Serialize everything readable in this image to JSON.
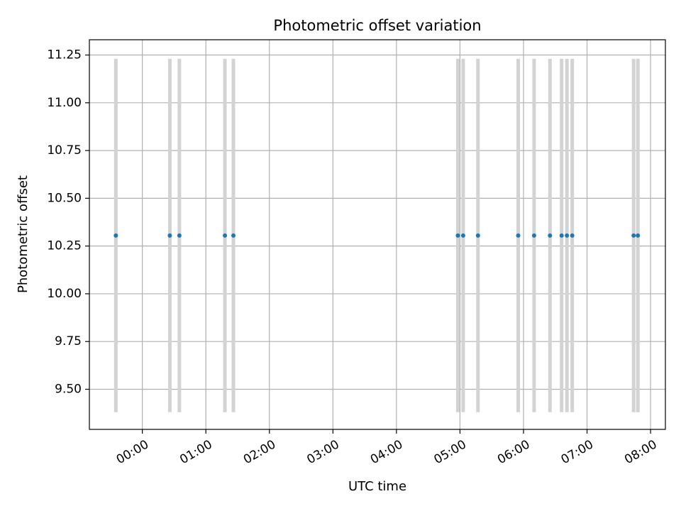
{
  "chart_data": {
    "type": "scatter",
    "title": "Photometric offset variation",
    "xlabel": "UTC time",
    "ylabel": "Photometric offset",
    "x_ticks": [
      "00:00",
      "01:00",
      "02:00",
      "03:00",
      "04:00",
      "05:00",
      "06:00",
      "07:00",
      "08:00"
    ],
    "y_ticks": [
      "9.50",
      "9.75",
      "10.00",
      "10.25",
      "10.50",
      "10.75",
      "11.00",
      "11.25"
    ],
    "xlim": [
      "-00:50",
      "08:14"
    ],
    "ylim": [
      9.29,
      11.33
    ],
    "grid": true,
    "errorbar_color": "#d3d3d3",
    "marker_color": "#1f77b4",
    "x": [
      "-00:25",
      "00:26",
      "00:35",
      "01:18",
      "01:26",
      "04:58",
      "05:03",
      "05:17",
      "05:55",
      "06:10",
      "06:25",
      "06:36",
      "06:41",
      "06:46",
      "07:44",
      "07:48"
    ],
    "y": [
      10.305,
      10.305,
      10.305,
      10.305,
      10.305,
      10.305,
      10.305,
      10.305,
      10.305,
      10.305,
      10.305,
      10.305,
      10.305,
      10.305,
      10.305,
      10.305
    ],
    "y_err_low": [
      9.38,
      9.38,
      9.38,
      9.38,
      9.38,
      9.38,
      9.38,
      9.38,
      9.38,
      9.38,
      9.38,
      9.38,
      9.38,
      9.38,
      9.38,
      9.38
    ],
    "y_err_high": [
      11.23,
      11.23,
      11.23,
      11.23,
      11.23,
      11.23,
      11.23,
      11.23,
      11.23,
      11.23,
      11.23,
      11.23,
      11.23,
      11.23,
      11.23,
      11.23
    ]
  }
}
